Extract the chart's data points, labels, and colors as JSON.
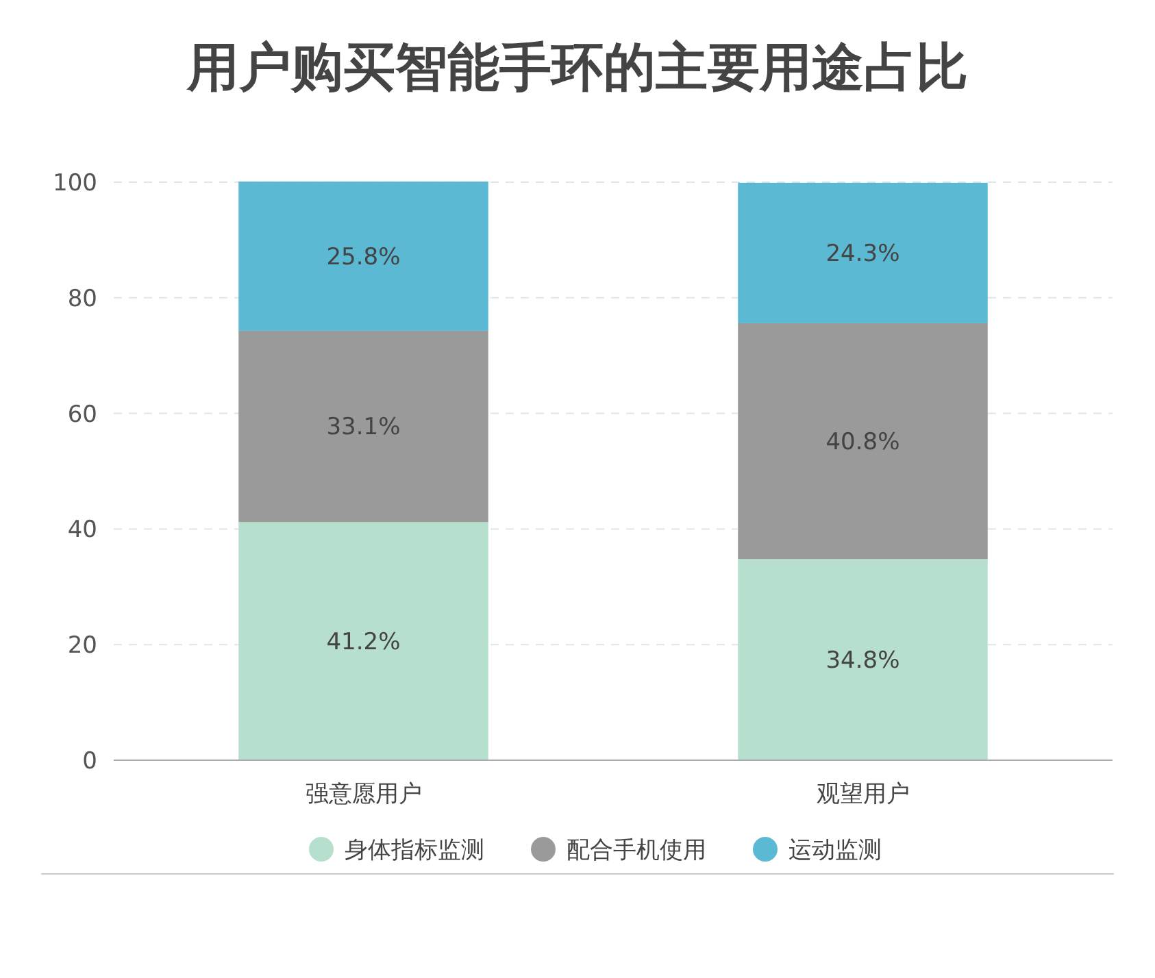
{
  "chart_data": {
    "type": "bar",
    "title": "用户购买智能手环的主要用途占比",
    "categories": [
      "强意愿用户",
      "观望用户"
    ],
    "stacked": true,
    "series": [
      {
        "name": "身体指标监测",
        "color": "#b6e0cd",
        "values": [
          41.2,
          34.8
        ],
        "value_labels": [
          "41.2%",
          "34.8%"
        ]
      },
      {
        "name": "配合手机使用",
        "color": "#9a9a9a",
        "values": [
          33.1,
          40.8
        ],
        "value_labels": [
          "33.1%",
          "40.8%"
        ]
      },
      {
        "name": "运动监测",
        "color": "#5bb9d3",
        "values": [
          25.8,
          24.3
        ],
        "value_labels": [
          "25.8%",
          "24.3%"
        ]
      }
    ],
    "ylim": [
      0,
      100
    ],
    "yticks": [
      0,
      20,
      40,
      60,
      80,
      100
    ],
    "grid": "y",
    "legend": "bottom"
  }
}
